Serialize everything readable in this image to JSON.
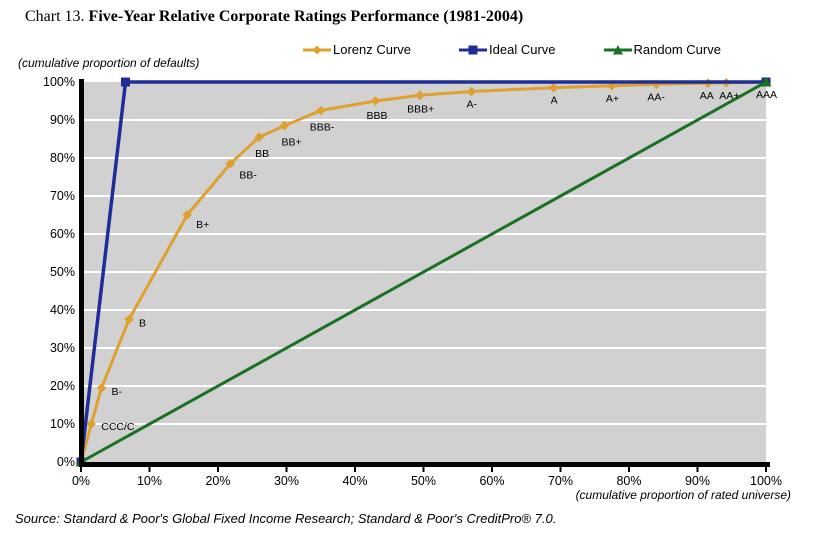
{
  "title": {
    "prefix": "Chart 13. ",
    "main": "Five-Year Relative Corporate Ratings Performance (1981-2004)"
  },
  "axis_units": {
    "y": "(cumulative proportion of defaults)",
    "x": "(cumulative proportion of rated universe)"
  },
  "source_note": "Source: Standard & Poor's Global Fixed Income Research; Standard & Poor's CreditPro® 7.0.",
  "colors": {
    "plot_bg": "#D1D1D1",
    "gridline": "#FFFFFF",
    "axis": "#000000",
    "lorenz": "#DFA02F",
    "ideal": "#1F2E96",
    "random": "#1A7023"
  },
  "legend": {
    "items": [
      {
        "label": "Lorenz Curve",
        "series": "lorenz",
        "marker": "diamond"
      },
      {
        "label": "Ideal Curve",
        "series": "ideal",
        "marker": "square"
      },
      {
        "label": "Random Curve",
        "series": "random",
        "marker": "triangle"
      }
    ]
  },
  "chart_data": {
    "type": "line",
    "title": "Five-Year Relative Corporate Ratings Performance (1981-2004)",
    "xlabel": "(cumulative proportion of rated universe)",
    "ylabel": "(cumulative proportion of defaults)",
    "xlim": [
      0,
      100
    ],
    "ylim": [
      0,
      100
    ],
    "x_ticks": [
      "0%",
      "10%",
      "20%",
      "30%",
      "40%",
      "50%",
      "60%",
      "70%",
      "80%",
      "90%",
      "100%"
    ],
    "y_ticks": [
      "0%",
      "10%",
      "20%",
      "30%",
      "40%",
      "50%",
      "60%",
      "70%",
      "80%",
      "90%",
      "100%"
    ],
    "grid": "horizontal-white-on-gray",
    "legend_position": "top-center",
    "series": [
      {
        "name": "Lorenz Curve",
        "key": "lorenz",
        "marker": "diamond",
        "points": [
          {
            "x": 0,
            "y": 0
          },
          {
            "x": 1.5,
            "y": 10,
            "label": "CCC/C",
            "dx": 10,
            "dy": 6
          },
          {
            "x": 3,
            "y": 19.5,
            "label": "B-",
            "dx": 10,
            "dy": 7
          },
          {
            "x": 7,
            "y": 37.5,
            "label": "B",
            "dx": 10,
            "dy": 7
          },
          {
            "x": 15.5,
            "y": 65,
            "label": "B+",
            "dx": 9,
            "dy": 13
          },
          {
            "x": 21.8,
            "y": 78.5,
            "label": "BB-",
            "dx": 9,
            "dy": 15
          },
          {
            "x": 26,
            "y": 85.5,
            "label": "BB",
            "dx": -4,
            "dy": 20
          },
          {
            "x": 29.7,
            "y": 88.5,
            "label": "BB+",
            "dx": -3,
            "dy": 20
          },
          {
            "x": 35,
            "y": 92.5,
            "label": "BBB-",
            "dx": -11,
            "dy": 20
          },
          {
            "x": 43,
            "y": 95,
            "label": "BBB",
            "dx": -9,
            "dy": 18
          },
          {
            "x": 49.5,
            "y": 96.5,
            "label": "BBB+",
            "dx": -13,
            "dy": 17
          },
          {
            "x": 57,
            "y": 97.5,
            "label": "A-",
            "dx": -5,
            "dy": 16
          },
          {
            "x": 69,
            "y": 98.5,
            "label": "A",
            "dx": -3,
            "dy": 16
          },
          {
            "x": 77.5,
            "y": 99,
            "label": "A+",
            "dx": -6,
            "dy": 16
          },
          {
            "x": 84,
            "y": 99.4,
            "label": "AA-",
            "dx": -9,
            "dy": 16
          },
          {
            "x": 91.5,
            "y": 99.7,
            "label": "AA",
            "dx": -8,
            "dy": 16
          },
          {
            "x": 94.2,
            "y": 99.8,
            "label": "AA+",
            "dx": -7,
            "dy": 16
          },
          {
            "x": 100,
            "y": 100,
            "label": "AAA",
            "dx": -10,
            "dy": 16
          }
        ]
      },
      {
        "name": "Ideal Curve",
        "key": "ideal",
        "marker": "square",
        "points": [
          {
            "x": 0,
            "y": 0
          },
          {
            "x": 6.5,
            "y": 100
          },
          {
            "x": 100,
            "y": 100
          }
        ]
      },
      {
        "name": "Random Curve",
        "key": "random",
        "marker": "triangle",
        "points": [
          {
            "x": 0,
            "y": 0
          },
          {
            "x": 100,
            "y": 100
          }
        ]
      }
    ]
  }
}
